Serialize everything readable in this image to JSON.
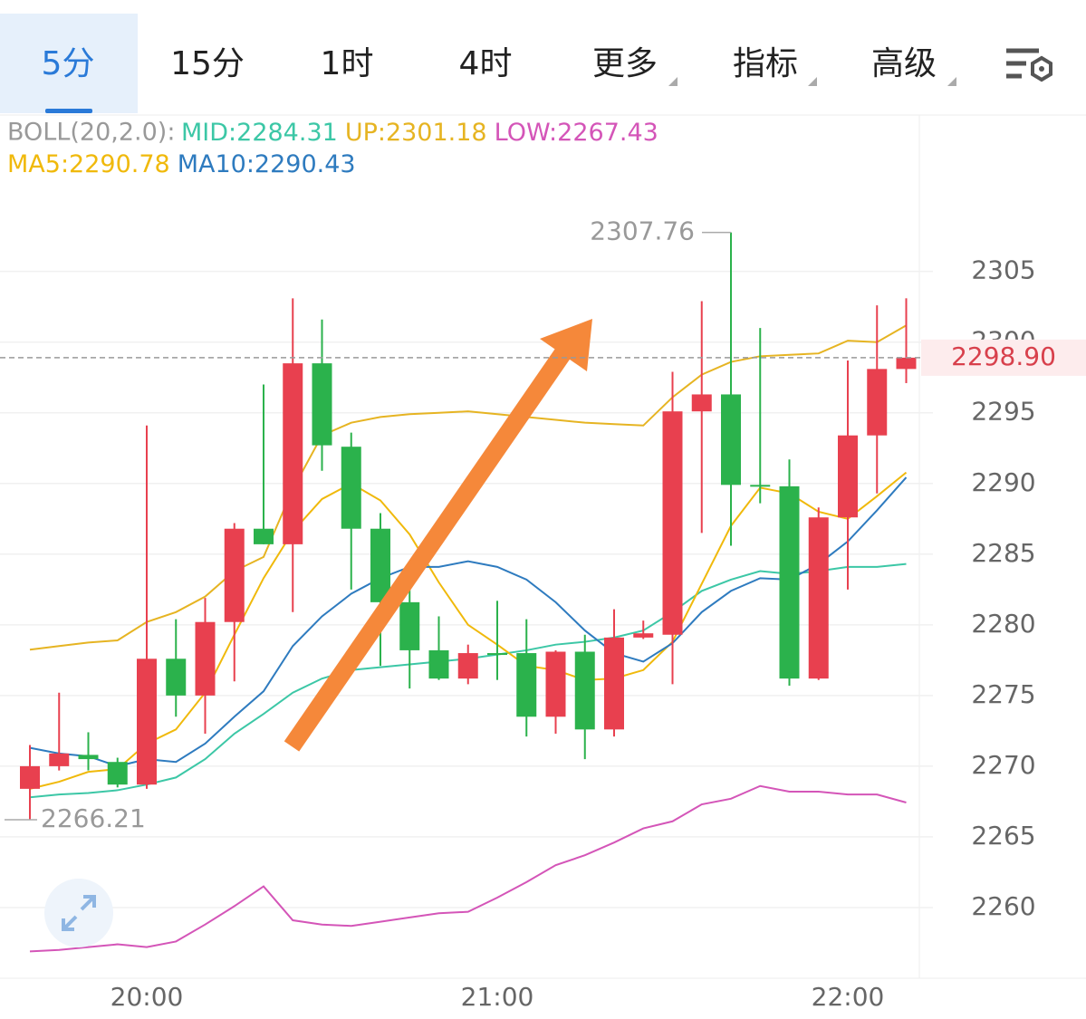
{
  "tabs": [
    "5分",
    "15分",
    "1时",
    "4时",
    "更多",
    "指标",
    "高级"
  ],
  "chart_data": {
    "type": "candlestick",
    "indicator_label": "BOLL(20,2.0):",
    "categories": [
      null,
      null,
      null,
      null,
      "20:00",
      null,
      null,
      null,
      null,
      null,
      null,
      null,
      null,
      null,
      null,
      null,
      "21:00",
      null,
      null,
      null,
      null,
      null,
      null,
      null,
      null,
      null,
      null,
      null,
      "22:00",
      null,
      null
    ],
    "open": [
      2268.4,
      2270.0,
      2270.8,
      2270.3,
      2268.7,
      2277.6,
      2275.0,
      2280.2,
      2286.8,
      2285.7,
      2298.5,
      2292.6,
      2286.8,
      2281.6,
      2278.2,
      2276.2,
      2278.0,
      2278.0,
      2273.5,
      2278.1,
      2272.6,
      2279.1,
      2279.3,
      2295.1,
      2296.3,
      2289.9,
      2289.8,
      2276.2,
      2287.6,
      2293.4,
      2298.1
    ],
    "high": [
      2271.5,
      2275.2,
      2272.4,
      2270.6,
      2294.1,
      2280.4,
      2281.9,
      2287.2,
      2297.0,
      2303.1,
      2301.6,
      2293.6,
      2287.9,
      2283.2,
      2280.6,
      2278.6,
      2281.7,
      2280.4,
      2278.2,
      2279.3,
      2281.1,
      2280.3,
      2297.9,
      2302.9,
      2307.76,
      2301.0,
      2291.7,
      2288.3,
      2298.7,
      2302.6,
      2303.1
    ],
    "low": [
      2266.21,
      2269.7,
      2269.7,
      2268.5,
      2268.4,
      2273.5,
      2272.3,
      2276.0,
      2285.7,
      2280.9,
      2290.9,
      2282.5,
      2277.1,
      2275.5,
      2276.1,
      2275.8,
      2276.1,
      2272.1,
      2272.3,
      2270.5,
      2272.1,
      2279.0,
      2275.8,
      2286.5,
      2285.6,
      2288.6,
      2275.7,
      2276.1,
      2282.5,
      2289.3,
      2297.1
    ],
    "close": [
      2270.0,
      2270.9,
      2270.5,
      2268.7,
      2277.6,
      2275.0,
      2280.2,
      2286.8,
      2285.7,
      2298.5,
      2292.7,
      2286.8,
      2281.6,
      2278.2,
      2276.2,
      2278.0,
      2277.9,
      2273.5,
      2278.1,
      2272.6,
      2279.1,
      2279.4,
      2295.1,
      2296.3,
      2289.9,
      2289.8,
      2276.2,
      2287.6,
      2293.4,
      2298.1,
      2298.9
    ],
    "up_color": "#e8404f",
    "down_color": "#2bb24c",
    "series": [
      {
        "name": "MID:2284.31",
        "color": "#3cc7a6",
        "values": [
          2267.8,
          2268.0,
          2268.1,
          2268.3,
          2268.7,
          2269.2,
          2270.5,
          2272.3,
          2273.7,
          2275.2,
          2276.2,
          2276.8,
          2277.0,
          2277.2,
          2277.4,
          2277.6,
          2277.9,
          2278.2,
          2278.6,
          2278.8,
          2279.1,
          2279.6,
          2280.9,
          2282.4,
          2283.2,
          2283.8,
          2283.6,
          2283.8,
          2284.1,
          2284.1,
          2284.31
        ]
      },
      {
        "name": "UP:2301.18",
        "color": "#e6b422",
        "values": [
          2278.24,
          2278.5,
          2278.75,
          2278.9,
          2280.2,
          2280.9,
          2282.0,
          2283.8,
          2284.8,
          2289.6,
          2293.4,
          2294.3,
          2294.7,
          2294.9,
          2295.0,
          2295.1,
          2294.9,
          2294.7,
          2294.5,
          2294.3,
          2294.2,
          2294.1,
          2296.1,
          2297.7,
          2298.6,
          2299.0,
          2299.1,
          2299.2,
          2300.1,
          2300.0,
          2301.18
        ]
      },
      {
        "name": "LOW:2267.43",
        "color": "#d455b8",
        "values": [
          2256.9,
          2257.0,
          2257.2,
          2257.4,
          2257.2,
          2257.6,
          2258.8,
          2260.1,
          2261.5,
          2259.1,
          2258.8,
          2258.7,
          2259.0,
          2259.3,
          2259.6,
          2259.7,
          2260.7,
          2261.8,
          2263.0,
          2263.7,
          2264.6,
          2265.6,
          2266.1,
          2267.3,
          2267.7,
          2268.6,
          2268.2,
          2268.2,
          2268.0,
          2268.0,
          2267.43
        ]
      },
      {
        "name": "MA5:2290.78",
        "color": "#f0b90b",
        "values": [
          2268.4,
          2268.9,
          2269.6,
          2269.8,
          2271.6,
          2272.6,
          2275.2,
          2279.3,
          2283.3,
          2286.6,
          2288.9,
          2290.0,
          2288.8,
          2286.4,
          2283.0,
          2280.0,
          2278.6,
          2277.1,
          2276.8,
          2276.1,
          2276.2,
          2276.8,
          2278.8,
          2282.9,
          2287.0,
          2289.7,
          2289.3,
          2288.0,
          2287.5,
          2289.1,
          2290.78
        ]
      },
      {
        "name": "MA10:2290.43",
        "color": "#2e7bbf",
        "values": [
          2271.3,
          2270.9,
          2270.7,
          2270.0,
          2270.5,
          2270.3,
          2271.6,
          2273.5,
          2275.3,
          2278.5,
          2280.6,
          2282.2,
          2283.3,
          2284.1,
          2284.1,
          2284.5,
          2284.1,
          2283.2,
          2281.6,
          2279.6,
          2278.0,
          2277.4,
          2278.7,
          2280.9,
          2282.4,
          2283.3,
          2283.2,
          2284.3,
          2285.9,
          2288.1,
          2290.43
        ]
      }
    ],
    "ylim": [
      2255,
      2316
    ],
    "yticks": [
      2260,
      2265,
      2270,
      2275,
      2280,
      2285,
      2290,
      2295,
      2300,
      2305
    ],
    "grid": true,
    "high_mark": 2307.76,
    "low_mark": 2266.21,
    "current_price": {
      "value": 2298.9,
      "label": "2298.90"
    }
  }
}
